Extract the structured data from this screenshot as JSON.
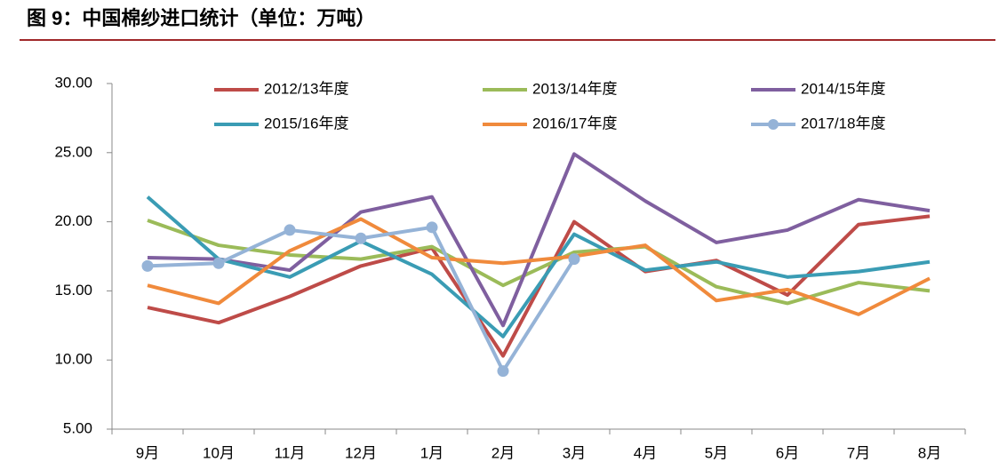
{
  "chart_data": {
    "type": "line",
    "title": "图 9：中国棉纱进口统计（单位：万吨）",
    "categories": [
      "9月",
      "10月",
      "11月",
      "12月",
      "1月",
      "2月",
      "3月",
      "4月",
      "5月",
      "6月",
      "7月",
      "8月"
    ],
    "series": [
      {
        "name": "2012/13年度",
        "color": "#be4b48",
        "values": [
          13.8,
          12.7,
          14.6,
          16.8,
          18.1,
          10.3,
          20.0,
          16.4,
          17.2,
          14.7,
          19.8,
          20.4
        ]
      },
      {
        "name": "2013/14年度",
        "color": "#9bbb59",
        "values": [
          20.1,
          18.3,
          17.6,
          17.3,
          18.2,
          15.4,
          17.8,
          18.2,
          15.3,
          14.1,
          15.6,
          15.0
        ]
      },
      {
        "name": "2014/15年度",
        "color": "#7f5f9f",
        "values": [
          17.4,
          17.3,
          16.5,
          20.7,
          21.8,
          12.5,
          24.9,
          21.5,
          18.5,
          19.4,
          21.6,
          20.8
        ]
      },
      {
        "name": "2015/16年度",
        "color": "#3a9cb4",
        "values": [
          21.8,
          17.3,
          16.0,
          18.6,
          16.2,
          11.7,
          19.1,
          16.5,
          17.1,
          16.0,
          16.4,
          17.1
        ]
      },
      {
        "name": "2016/17年度",
        "color": "#f08a3c",
        "values": [
          15.4,
          14.1,
          17.9,
          20.2,
          17.4,
          17.0,
          17.5,
          18.3,
          14.3,
          15.1,
          13.3,
          15.9
        ]
      },
      {
        "name": "2017/18年度",
        "color": "#95b3d7",
        "markers": true,
        "values": [
          16.8,
          17.0,
          19.4,
          18.8,
          19.6,
          9.2,
          17.3,
          null,
          null,
          null,
          null,
          null
        ]
      }
    ],
    "ylim": [
      5,
      30
    ],
    "yticks": [
      {
        "value": 5,
        "label": "5.00"
      },
      {
        "value": 10,
        "label": "10.00"
      },
      {
        "value": 15,
        "label": "15.00"
      },
      {
        "value": 20,
        "label": "20.00"
      },
      {
        "value": 25,
        "label": "25.00"
      },
      {
        "value": 30,
        "label": "30.00"
      }
    ],
    "grid": false
  }
}
